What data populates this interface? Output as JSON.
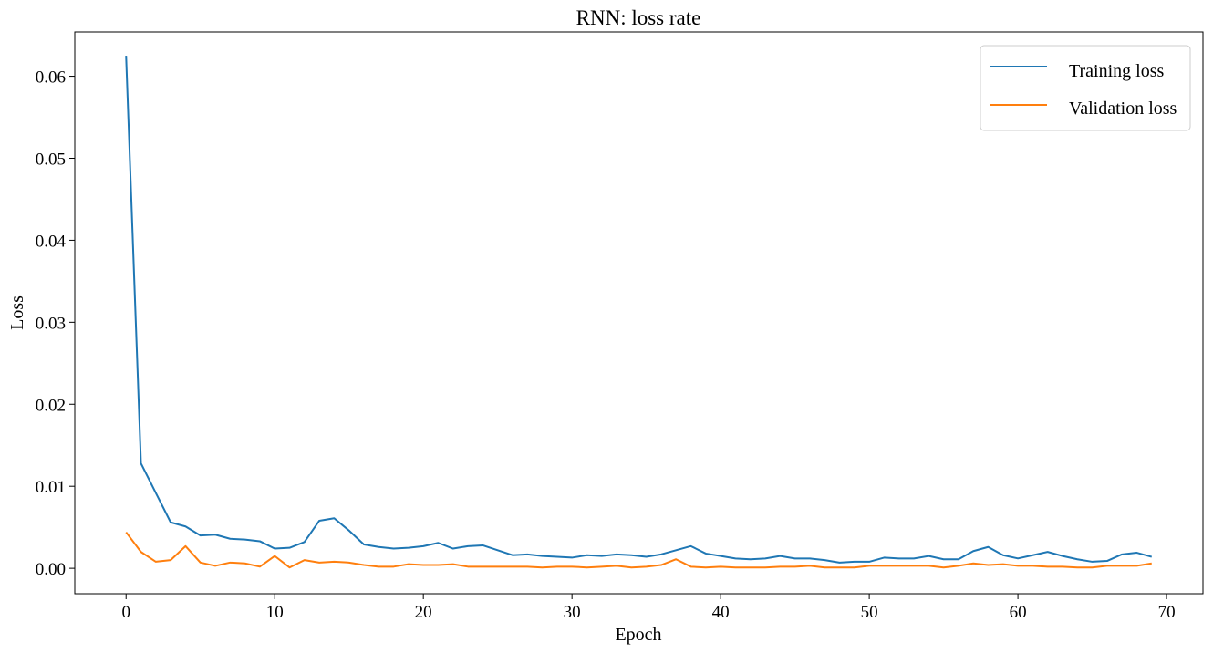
{
  "chart_data": {
    "type": "line",
    "title": "RNN: loss rate",
    "xlabel": "Epoch",
    "ylabel": "Loss",
    "xlim": [
      -3.45,
      72.45
    ],
    "ylim": [
      -0.0031,
      0.0654
    ],
    "xticks": [
      0,
      10,
      20,
      30,
      40,
      50,
      60,
      70
    ],
    "yticks": [
      0.0,
      0.01,
      0.02,
      0.03,
      0.04,
      0.05,
      0.06
    ],
    "grid": false,
    "legend": "top-right",
    "series": [
      {
        "name": "Training loss",
        "color": "#1f77b4",
        "values": [
          0.0625,
          0.0128,
          0.0092,
          0.0056,
          0.0051,
          0.004,
          0.0041,
          0.0036,
          0.0035,
          0.0033,
          0.0024,
          0.0025,
          0.0032,
          0.0058,
          0.0061,
          0.0046,
          0.0029,
          0.0026,
          0.0024,
          0.0025,
          0.0027,
          0.0031,
          0.0024,
          0.0027,
          0.0028,
          0.0022,
          0.0016,
          0.0017,
          0.0015,
          0.0014,
          0.0013,
          0.0016,
          0.0015,
          0.0017,
          0.0016,
          0.0014,
          0.0017,
          0.0022,
          0.0027,
          0.0018,
          0.0015,
          0.0012,
          0.0011,
          0.0012,
          0.0015,
          0.0012,
          0.0012,
          0.001,
          0.0007,
          0.0008,
          0.0008,
          0.0013,
          0.0012,
          0.0012,
          0.0015,
          0.0011,
          0.0011,
          0.0021,
          0.0026,
          0.0016,
          0.0012,
          0.0016,
          0.002,
          0.0015,
          0.0011,
          0.0008,
          0.0009,
          0.0017,
          0.0019,
          0.0014
        ]
      },
      {
        "name": "Validation loss",
        "color": "#ff7f0e",
        "values": [
          0.0044,
          0.002,
          0.0008,
          0.001,
          0.0027,
          0.0007,
          0.0003,
          0.0007,
          0.0006,
          0.0002,
          0.0015,
          0.0001,
          0.001,
          0.0007,
          0.0008,
          0.0007,
          0.0004,
          0.0002,
          0.0002,
          0.0005,
          0.0004,
          0.0004,
          0.0005,
          0.0002,
          0.0002,
          0.0002,
          0.0002,
          0.0002,
          0.0001,
          0.0002,
          0.0002,
          0.0001,
          0.0002,
          0.0003,
          0.0001,
          0.0002,
          0.0004,
          0.0011,
          0.0002,
          0.0001,
          0.0002,
          0.0001,
          0.0001,
          0.0001,
          0.0002,
          0.0002,
          0.0003,
          0.0001,
          0.0001,
          0.0001,
          0.0003,
          0.0003,
          0.0003,
          0.0003,
          0.0003,
          0.0001,
          0.0003,
          0.0006,
          0.0004,
          0.0005,
          0.0003,
          0.0003,
          0.0002,
          0.0002,
          0.0001,
          0.0001,
          0.0003,
          0.0003,
          0.0003,
          0.0006
        ]
      }
    ]
  }
}
